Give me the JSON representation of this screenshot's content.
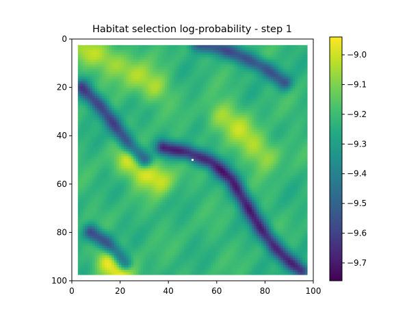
{
  "chart_data": {
    "type": "heatmap",
    "title": "Habitat selection log-probability - step 1",
    "xlabel": "",
    "ylabel": "",
    "xlim": [
      0,
      100
    ],
    "ylim": [
      100,
      0
    ],
    "xticks": [
      "0",
      "20",
      "40",
      "60",
      "80",
      "100"
    ],
    "yticks": [
      "0",
      "20",
      "40",
      "60",
      "80",
      "100"
    ],
    "data_extent": [
      2.5,
      97.5
    ],
    "colormap": "viridis",
    "colorbar": {
      "range": [
        -9.76,
        -8.94
      ],
      "ticks": [
        "−9.0",
        "−9.1",
        "−9.2",
        "−9.3",
        "−9.4",
        "−9.5",
        "−9.6",
        "−9.7"
      ]
    },
    "features": [
      {
        "kind": "valley",
        "points": [
          [
            4,
            20
          ],
          [
            12,
            28
          ],
          [
            18,
            36
          ],
          [
            24,
            44
          ],
          [
            30,
            50
          ]
        ],
        "value": -9.6
      },
      {
        "kind": "valley",
        "points": [
          [
            38,
            45
          ],
          [
            48,
            47
          ],
          [
            58,
            51
          ],
          [
            66,
            58
          ],
          [
            72,
            68
          ],
          [
            78,
            78
          ],
          [
            84,
            86
          ],
          [
            90,
            92
          ],
          [
            95,
            96
          ]
        ],
        "value": -9.68
      },
      {
        "kind": "valley",
        "points": [
          [
            8,
            80
          ],
          [
            14,
            84
          ],
          [
            18,
            88
          ],
          [
            22,
            93
          ]
        ],
        "value": -9.6
      },
      {
        "kind": "valley",
        "points": [
          [
            52,
            2
          ],
          [
            62,
            4
          ],
          [
            72,
            8
          ],
          [
            80,
            12
          ],
          [
            88,
            18
          ]
        ],
        "value": -9.55
      },
      {
        "kind": "ridge",
        "points": [
          [
            6,
            5
          ],
          [
            14,
            8
          ],
          [
            22,
            12
          ],
          [
            28,
            16
          ],
          [
            34,
            20
          ]
        ],
        "value": -9.05
      },
      {
        "kind": "ridge",
        "points": [
          [
            62,
            32
          ],
          [
            68,
            36
          ],
          [
            74,
            42
          ],
          [
            80,
            48
          ]
        ],
        "value": -9.05
      },
      {
        "kind": "ridge",
        "points": [
          [
            24,
            50
          ],
          [
            30,
            55
          ],
          [
            36,
            58
          ]
        ],
        "value": -9.0
      },
      {
        "kind": "ridge",
        "points": [
          [
            16,
            92
          ],
          [
            20,
            96
          ]
        ],
        "value": -8.95
      }
    ],
    "marker": {
      "x": 50,
      "y": 50,
      "color": "#ffffff"
    }
  }
}
